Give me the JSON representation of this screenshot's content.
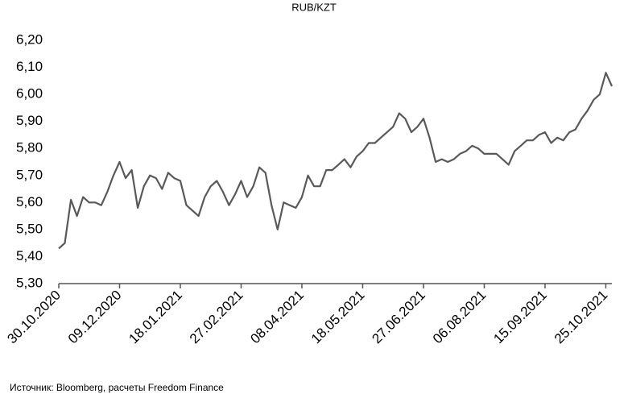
{
  "chart_data": {
    "type": "line",
    "title": "RUB/KZT",
    "source": "Источник: Bloomberg, расчеты Freedom Finance",
    "x": [
      "30.10.2020",
      "03.11.2020",
      "07.11.2020",
      "11.11.2020",
      "15.11.2020",
      "19.11.2020",
      "23.11.2020",
      "27.11.2020",
      "01.12.2020",
      "05.12.2020",
      "09.12.2020",
      "13.12.2020",
      "17.12.2020",
      "21.12.2020",
      "25.12.2020",
      "29.12.2020",
      "02.01.2021",
      "06.01.2021",
      "10.01.2021",
      "14.01.2021",
      "18.01.2021",
      "22.01.2021",
      "26.01.2021",
      "30.01.2021",
      "03.02.2021",
      "07.02.2021",
      "11.02.2021",
      "15.02.2021",
      "19.02.2021",
      "23.02.2021",
      "27.02.2021",
      "03.03.2021",
      "07.03.2021",
      "11.03.2021",
      "15.03.2021",
      "19.03.2021",
      "23.03.2021",
      "27.03.2021",
      "31.03.2021",
      "04.04.2021",
      "08.04.2021",
      "12.04.2021",
      "16.04.2021",
      "20.04.2021",
      "24.04.2021",
      "28.04.2021",
      "02.05.2021",
      "06.05.2021",
      "10.05.2021",
      "14.05.2021",
      "18.05.2021",
      "22.05.2021",
      "26.05.2021",
      "30.05.2021",
      "03.06.2021",
      "07.06.2021",
      "11.06.2021",
      "15.06.2021",
      "19.06.2021",
      "23.06.2021",
      "27.06.2021",
      "01.07.2021",
      "05.07.2021",
      "09.07.2021",
      "13.07.2021",
      "17.07.2021",
      "21.07.2021",
      "25.07.2021",
      "29.07.2021",
      "02.08.2021",
      "06.08.2021",
      "10.08.2021",
      "14.08.2021",
      "18.08.2021",
      "22.08.2021",
      "26.08.2021",
      "30.08.2021",
      "03.09.2021",
      "07.09.2021",
      "11.09.2021",
      "15.09.2021",
      "19.09.2021",
      "23.09.2021",
      "27.09.2021",
      "01.10.2021",
      "05.10.2021",
      "09.10.2021",
      "13.10.2021",
      "17.10.2021",
      "21.10.2021",
      "25.10.2021",
      "29.10.2021"
    ],
    "series": [
      {
        "name": "RUB/KZT",
        "color": "#595959",
        "values": [
          5.43,
          5.45,
          5.61,
          5.55,
          5.62,
          5.6,
          5.6,
          5.59,
          5.64,
          5.7,
          5.75,
          5.69,
          5.72,
          5.58,
          5.66,
          5.7,
          5.69,
          5.65,
          5.71,
          5.69,
          5.68,
          5.59,
          5.57,
          5.55,
          5.62,
          5.66,
          5.68,
          5.64,
          5.59,
          5.63,
          5.68,
          5.62,
          5.66,
          5.73,
          5.71,
          5.59,
          5.5,
          5.6,
          5.59,
          5.58,
          5.62,
          5.7,
          5.66,
          5.66,
          5.72,
          5.72,
          5.74,
          5.76,
          5.73,
          5.77,
          5.79,
          5.82,
          5.82,
          5.84,
          5.86,
          5.88,
          5.93,
          5.91,
          5.86,
          5.88,
          5.91,
          5.84,
          5.75,
          5.76,
          5.75,
          5.76,
          5.78,
          5.79,
          5.81,
          5.8,
          5.78,
          5.78,
          5.78,
          5.76,
          5.74,
          5.79,
          5.81,
          5.83,
          5.83,
          5.85,
          5.86,
          5.82,
          5.84,
          5.83,
          5.86,
          5.87,
          5.91,
          5.94,
          5.98,
          6.0,
          6.08,
          6.03
        ]
      }
    ],
    "xlim": [
      "30.10.2020",
      "29.10.2021"
    ],
    "xticks": [
      "30.10.2020",
      "09.12.2020",
      "18.01.2021",
      "27.02.2021",
      "08.04.2021",
      "18.05.2021",
      "27.06.2021",
      "06.08.2021",
      "15.09.2021",
      "25.10.2021"
    ],
    "ylim": [
      5.3,
      6.2
    ],
    "yticks": [
      {
        "value": 5.3,
        "label": "5,30"
      },
      {
        "value": 5.4,
        "label": "5,40"
      },
      {
        "value": 5.5,
        "label": "5,50"
      },
      {
        "value": 5.6,
        "label": "5,60"
      },
      {
        "value": 5.7,
        "label": "5,70"
      },
      {
        "value": 5.8,
        "label": "5,80"
      },
      {
        "value": 5.9,
        "label": "5,90"
      },
      {
        "value": 6.0,
        "label": "6,00"
      },
      {
        "value": 6.1,
        "label": "6,10"
      },
      {
        "value": 6.2,
        "label": "6,20"
      }
    ],
    "grid": false
  }
}
